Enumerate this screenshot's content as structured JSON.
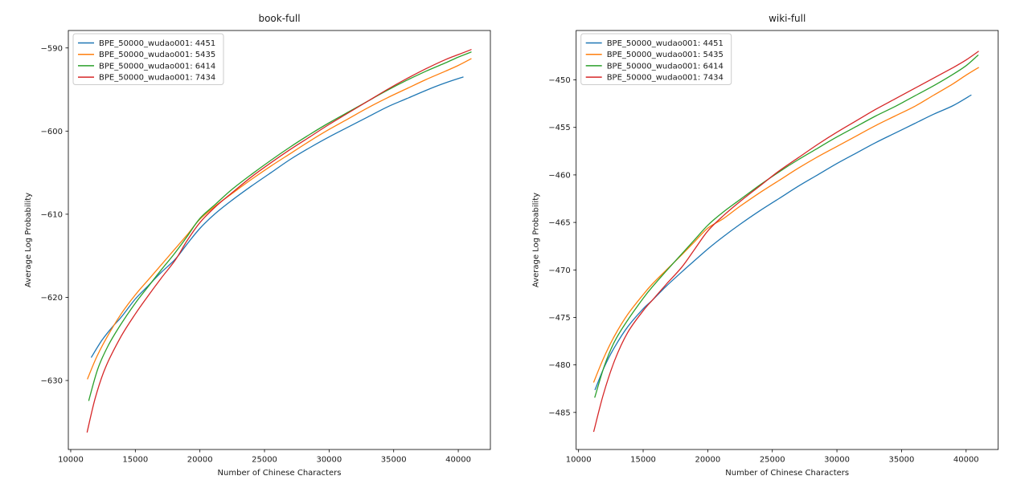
{
  "figure": {
    "background_color": "#ffffff",
    "text_color": "#1a1a1a"
  },
  "chart_data": [
    {
      "type": "line",
      "title": "book-full",
      "xlabel": "Number of Chinese Characters",
      "ylabel": "Average Log Probability",
      "xlim": [
        9815,
        42485
      ],
      "ylim": [
        -638.3,
        -587.9
      ],
      "xticks": [
        10000,
        15000,
        20000,
        25000,
        30000,
        35000,
        40000
      ],
      "yticks": [
        -590,
        -600,
        -610,
        -620,
        -630
      ],
      "grid": false,
      "legend_position": "upper left",
      "series": [
        {
          "name": "BPE_50000_wudao001: 4451",
          "color": "#1f77b4",
          "points": [
            [
              11600,
              -627.2
            ],
            [
              12400,
              -625.2
            ],
            [
              13200,
              -623.6
            ],
            [
              13900,
              -622.4
            ],
            [
              15000,
              -620.2
            ],
            [
              16000,
              -618.6
            ],
            [
              17000,
              -617.0
            ],
            [
              18100,
              -615.4
            ],
            [
              19000,
              -613.6
            ],
            [
              20000,
              -611.7
            ],
            [
              21200,
              -609.9
            ],
            [
              22500,
              -608.3
            ],
            [
              24000,
              -606.6
            ],
            [
              25500,
              -605.0
            ],
            [
              27000,
              -603.4
            ],
            [
              28500,
              -602.0
            ],
            [
              30000,
              -600.7
            ],
            [
              31500,
              -599.5
            ],
            [
              33000,
              -598.3
            ],
            [
              34500,
              -597.1
            ],
            [
              36000,
              -596.1
            ],
            [
              37500,
              -595.1
            ],
            [
              39000,
              -594.2
            ],
            [
              40370,
              -593.5
            ]
          ]
        },
        {
          "name": "BPE_50000_wudao001: 5435",
          "color": "#ff7f0e",
          "points": [
            [
              11300,
              -629.8
            ],
            [
              12000,
              -627.2
            ],
            [
              12800,
              -624.8
            ],
            [
              13900,
              -622.0
            ],
            [
              15000,
              -619.7
            ],
            [
              16000,
              -617.9
            ],
            [
              17000,
              -616.1
            ],
            [
              18000,
              -614.3
            ],
            [
              19000,
              -612.5
            ],
            [
              20000,
              -610.6
            ],
            [
              21200,
              -609.0
            ],
            [
              22500,
              -607.5
            ],
            [
              24000,
              -605.8
            ],
            [
              25500,
              -604.2
            ],
            [
              27000,
              -602.7
            ],
            [
              28500,
              -601.2
            ],
            [
              30000,
              -599.8
            ],
            [
              31500,
              -598.5
            ],
            [
              33000,
              -597.2
            ],
            [
              34500,
              -596.0
            ],
            [
              36000,
              -594.9
            ],
            [
              37500,
              -593.8
            ],
            [
              39000,
              -592.8
            ],
            [
              40000,
              -592.1
            ],
            [
              40990,
              -591.3
            ]
          ]
        },
        {
          "name": "BPE_50000_wudao001: 6414",
          "color": "#2ca02c",
          "points": [
            [
              11400,
              -632.4
            ],
            [
              12100,
              -628.6
            ],
            [
              12900,
              -625.8
            ],
            [
              13900,
              -623.2
            ],
            [
              15000,
              -620.7
            ],
            [
              16000,
              -618.7
            ],
            [
              17000,
              -616.7
            ],
            [
              18000,
              -614.8
            ],
            [
              19000,
              -612.7
            ],
            [
              20000,
              -610.5
            ],
            [
              21200,
              -608.8
            ],
            [
              22500,
              -607.0
            ],
            [
              24000,
              -605.2
            ],
            [
              25500,
              -603.5
            ],
            [
              27000,
              -601.9
            ],
            [
              28500,
              -600.4
            ],
            [
              30000,
              -599.0
            ],
            [
              31500,
              -597.7
            ],
            [
              33000,
              -596.4
            ],
            [
              34500,
              -595.1
            ],
            [
              36000,
              -593.9
            ],
            [
              37500,
              -592.8
            ],
            [
              39000,
              -591.8
            ],
            [
              40000,
              -591.1
            ],
            [
              40990,
              -590.5
            ]
          ]
        },
        {
          "name": "BPE_50000_wudao001: 7434",
          "color": "#d62728",
          "points": [
            [
              11270,
              -636.2
            ],
            [
              11900,
              -632.1
            ],
            [
              12700,
              -628.4
            ],
            [
              13900,
              -624.7
            ],
            [
              15000,
              -622.0
            ],
            [
              16000,
              -619.8
            ],
            [
              17000,
              -617.7
            ],
            [
              18100,
              -615.5
            ],
            [
              19000,
              -613.2
            ],
            [
              20000,
              -611.0
            ],
            [
              21200,
              -609.1
            ],
            [
              22500,
              -607.4
            ],
            [
              24000,
              -605.5
            ],
            [
              25500,
              -603.8
            ],
            [
              27000,
              -602.2
            ],
            [
              28500,
              -600.7
            ],
            [
              30000,
              -599.2
            ],
            [
              31500,
              -597.8
            ],
            [
              33000,
              -596.4
            ],
            [
              34500,
              -595.0
            ],
            [
              36000,
              -593.7
            ],
            [
              37500,
              -592.5
            ],
            [
              39000,
              -591.4
            ],
            [
              40000,
              -590.8
            ],
            [
              40990,
              -590.2
            ]
          ]
        }
      ]
    },
    {
      "type": "line",
      "title": "wiki-full",
      "xlabel": "Number of Chinese Characters",
      "ylabel": "Average Log Probability",
      "xlim": [
        9815,
        42485
      ],
      "ylim": [
        -488.9,
        -444.8
      ],
      "xticks": [
        10000,
        15000,
        20000,
        25000,
        30000,
        35000,
        40000
      ],
      "yticks": [
        -450,
        -455,
        -460,
        -465,
        -470,
        -475,
        -480,
        -485
      ],
      "grid": false,
      "legend_position": "upper left",
      "series": [
        {
          "name": "BPE_50000_wudao001: 4451",
          "color": "#1f77b4",
          "points": [
            [
              11280,
              -482.6
            ],
            [
              12000,
              -480.2
            ],
            [
              12800,
              -478.1
            ],
            [
              13800,
              -476.0
            ],
            [
              15000,
              -474.1
            ],
            [
              15700,
              -473.2
            ],
            [
              16800,
              -471.7
            ],
            [
              18000,
              -470.2
            ],
            [
              19000,
              -469.0
            ],
            [
              20000,
              -467.8
            ],
            [
              21200,
              -466.5
            ],
            [
              22500,
              -465.2
            ],
            [
              24000,
              -463.8
            ],
            [
              25500,
              -462.5
            ],
            [
              27000,
              -461.2
            ],
            [
              28500,
              -460.0
            ],
            [
              30000,
              -458.8
            ],
            [
              31500,
              -457.7
            ],
            [
              33000,
              -456.6
            ],
            [
              34500,
              -455.6
            ],
            [
              36000,
              -454.6
            ],
            [
              37500,
              -453.6
            ],
            [
              39000,
              -452.7
            ],
            [
              40380,
              -451.6
            ]
          ]
        },
        {
          "name": "BPE_50000_wudao001: 5435",
          "color": "#ff7f0e",
          "points": [
            [
              11180,
              -481.8
            ],
            [
              11900,
              -479.4
            ],
            [
              12800,
              -476.9
            ],
            [
              13800,
              -474.7
            ],
            [
              15000,
              -472.6
            ],
            [
              15700,
              -471.5
            ],
            [
              16800,
              -470.0
            ],
            [
              18000,
              -468.4
            ],
            [
              19000,
              -467.0
            ],
            [
              20000,
              -465.6
            ],
            [
              21200,
              -464.6
            ],
            [
              22500,
              -463.3
            ],
            [
              24000,
              -461.9
            ],
            [
              25500,
              -460.6
            ],
            [
              27000,
              -459.3
            ],
            [
              28500,
              -458.1
            ],
            [
              30000,
              -457.0
            ],
            [
              31500,
              -455.9
            ],
            [
              33000,
              -454.8
            ],
            [
              34500,
              -453.8
            ],
            [
              36000,
              -452.8
            ],
            [
              37500,
              -451.6
            ],
            [
              39000,
              -450.4
            ],
            [
              40000,
              -449.5
            ],
            [
              40960,
              -448.7
            ]
          ]
        },
        {
          "name": "BPE_50000_wudao001: 6414",
          "color": "#2ca02c",
          "points": [
            [
              11260,
              -483.4
            ],
            [
              12000,
              -480.1
            ],
            [
              12800,
              -477.5
            ],
            [
              13800,
              -475.3
            ],
            [
              15000,
              -473.0
            ],
            [
              15700,
              -471.8
            ],
            [
              16800,
              -470.1
            ],
            [
              18000,
              -468.3
            ],
            [
              19000,
              -466.8
            ],
            [
              20000,
              -465.3
            ],
            [
              21200,
              -463.9
            ],
            [
              22500,
              -462.6
            ],
            [
              24000,
              -461.1
            ],
            [
              25500,
              -459.7
            ],
            [
              27000,
              -458.4
            ],
            [
              28500,
              -457.2
            ],
            [
              30000,
              -456.0
            ],
            [
              31500,
              -454.9
            ],
            [
              33000,
              -453.8
            ],
            [
              34500,
              -452.8
            ],
            [
              36000,
              -451.7
            ],
            [
              37500,
              -450.6
            ],
            [
              39000,
              -449.4
            ],
            [
              40000,
              -448.5
            ],
            [
              40920,
              -447.4
            ]
          ]
        },
        {
          "name": "BPE_50000_wudao001: 7434",
          "color": "#d62728",
          "points": [
            [
              11180,
              -487.0
            ],
            [
              11900,
              -483.2
            ],
            [
              12800,
              -479.5
            ],
            [
              13800,
              -476.6
            ],
            [
              15000,
              -474.3
            ],
            [
              15700,
              -473.2
            ],
            [
              16800,
              -471.5
            ],
            [
              18000,
              -469.7
            ],
            [
              19000,
              -467.8
            ],
            [
              20000,
              -465.9
            ],
            [
              21200,
              -464.3
            ],
            [
              22500,
              -462.8
            ],
            [
              24000,
              -461.2
            ],
            [
              25500,
              -459.6
            ],
            [
              27000,
              -458.2
            ],
            [
              28500,
              -456.8
            ],
            [
              30000,
              -455.5
            ],
            [
              31500,
              -454.3
            ],
            [
              33000,
              -453.1
            ],
            [
              34500,
              -452.0
            ],
            [
              36000,
              -450.9
            ],
            [
              37500,
              -449.8
            ],
            [
              39000,
              -448.7
            ],
            [
              40000,
              -447.9
            ],
            [
              40955,
              -447.0
            ]
          ]
        }
      ]
    }
  ]
}
